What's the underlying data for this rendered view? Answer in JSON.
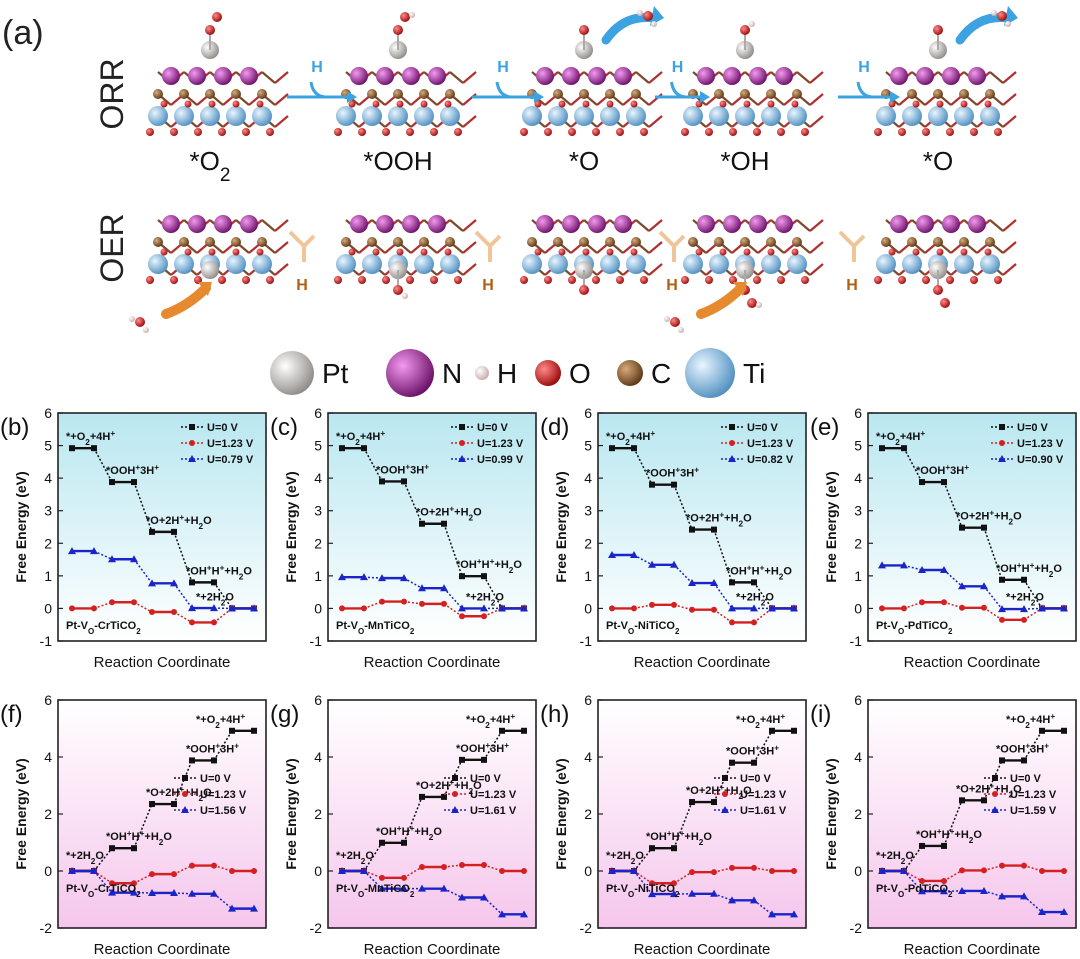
{
  "panel_a": {
    "label": "(a)",
    "orr": {
      "title": "ORR",
      "states": [
        "*O2",
        "*OOH",
        "*O",
        "*OH",
        "*O"
      ],
      "step_label": "H",
      "release_after": [
        2,
        4
      ]
    },
    "oer": {
      "title": "OER",
      "step_label": "H",
      "water_in_before": [
        0,
        3
      ]
    },
    "legend": [
      {
        "label": "Pt",
        "color": "#c9c3bd"
      },
      {
        "label": "N",
        "color": "#9a1f8f"
      },
      {
        "label": "H",
        "color": "#efd4d4"
      },
      {
        "label": "O",
        "color": "#cc1515"
      },
      {
        "label": "C",
        "color": "#8a5a2e"
      },
      {
        "label": "Ti",
        "color": "#7fb8e0"
      }
    ]
  },
  "colors": {
    "s0": "#111111",
    "s1": "#d42020",
    "s2": "#1a24c8",
    "top_bg": "#c9eef4",
    "bottom_bg": "#f7d0ee",
    "arrow_blue": "#3ca3e0",
    "arrow_orange": "#e58a2e"
  },
  "chart_data": [
    {
      "panel": "(b)",
      "type": "line",
      "sample": "Pt-VO-CrTiCO2",
      "sample_parts": [
        "Pt-V",
        "O",
        "-CrTiCO2"
      ],
      "xlabel": "Reaction Coordinate",
      "ylabel": "Free Energy (eV)",
      "ylim": [
        -1,
        6
      ],
      "yticks": [
        -1,
        0,
        1,
        2,
        3,
        4,
        5,
        6
      ],
      "legend_placement": "top-right",
      "series": [
        {
          "name": "U=0 V",
          "values": [
            4.92,
            3.88,
            2.35,
            0.8,
            0.0
          ]
        },
        {
          "name": "U=1.23 V",
          "values": [
            0.0,
            0.19,
            -0.11,
            -0.43,
            0.0
          ]
        },
        {
          "name": "U=0.79 V",
          "values": [
            1.76,
            1.51,
            0.77,
            0.01,
            0.0
          ]
        }
      ],
      "annotations": [
        "*+O2+4H+",
        "*OOH+3H+",
        "*O+2H++H2O",
        "*OH+H++H2O",
        "*+2H2O"
      ]
    },
    {
      "panel": "(c)",
      "type": "line",
      "sample": "Pt-VO-MnTiCO2",
      "sample_parts": [
        "Pt-V",
        "O",
        "-MnTiCO2"
      ],
      "xlabel": "Reaction Coordinate",
      "ylabel": "Free Energy (eV)",
      "ylim": [
        -1,
        6
      ],
      "yticks": [
        -1,
        0,
        1,
        2,
        3,
        4,
        5,
        6
      ],
      "legend_placement": "top-right",
      "series": [
        {
          "name": "U=0 V",
          "values": [
            4.92,
            3.9,
            2.6,
            0.99,
            0.0
          ]
        },
        {
          "name": "U=1.23 V",
          "values": [
            0.0,
            0.21,
            0.14,
            -0.24,
            0.0
          ]
        },
        {
          "name": "U=0.99 V",
          "values": [
            0.96,
            0.93,
            0.62,
            0.0,
            0.0
          ]
        }
      ],
      "annotations": [
        "*+O2+4H+",
        "*OOH+3H+",
        "*O+2H++H2O",
        "*OH+H++H2O",
        "*+2H2O"
      ]
    },
    {
      "panel": "(d)",
      "type": "line",
      "sample": "Pt-VO-NiTiCO2",
      "sample_parts": [
        "Pt-V",
        "O",
        "-NiTiCO2"
      ],
      "xlabel": "Reaction Coordinate",
      "ylabel": "Free Energy (eV)",
      "ylim": [
        -1,
        6
      ],
      "yticks": [
        -1,
        0,
        1,
        2,
        3,
        4,
        5,
        6
      ],
      "legend_placement": "top-right",
      "series": [
        {
          "name": "U=0 V",
          "values": [
            4.92,
            3.8,
            2.42,
            0.8,
            0.0
          ]
        },
        {
          "name": "U=1.23 V",
          "values": [
            0.0,
            0.11,
            -0.04,
            -0.43,
            0.0
          ]
        },
        {
          "name": "U=0.82 V",
          "values": [
            1.64,
            1.34,
            0.78,
            0.0,
            0.0
          ]
        }
      ],
      "annotations": [
        "*+O2+4H+",
        "*OOH+3H+",
        "*O+2H++H2O",
        "*OH+H++H2O",
        "*+2H2O"
      ]
    },
    {
      "panel": "(e)",
      "type": "line",
      "sample": "Pt-VO-PdTiCO2",
      "sample_parts": [
        "Pt-V",
        "O",
        "-PdTiCO2"
      ],
      "xlabel": "Reaction Coordinate",
      "ylabel": "Free Energy (eV)",
      "ylim": [
        -1,
        6
      ],
      "yticks": [
        -1,
        0,
        1,
        2,
        3,
        4,
        5,
        6
      ],
      "legend_placement": "top-right",
      "series": [
        {
          "name": "U=0 V",
          "values": [
            4.92,
            3.88,
            2.48,
            0.88,
            0.0
          ]
        },
        {
          "name": "U=1.23 V",
          "values": [
            0.0,
            0.19,
            0.02,
            -0.35,
            0.0
          ]
        },
        {
          "name": "U=0.90 V",
          "values": [
            1.32,
            1.18,
            0.68,
            -0.02,
            0.0
          ]
        }
      ],
      "annotations": [
        "*+O2+4H+",
        "*OOH+3H+",
        "*O+2H++H2O",
        "*OH+H++H2O",
        "*+2H2O"
      ]
    },
    {
      "panel": "(f)",
      "type": "line",
      "sample": "Pt-VO-CrTiCO2",
      "sample_parts": [
        "Pt-V",
        "O",
        "-CrTiCO2"
      ],
      "xlabel": "Reaction Coordinate",
      "ylabel": "Free Energy (eV)",
      "ylim": [
        -2,
        6
      ],
      "yticks": [
        -2,
        0,
        2,
        4,
        6
      ],
      "legend_placement": "center-right",
      "series": [
        {
          "name": "U=0 V",
          "values": [
            0.0,
            0.8,
            2.35,
            3.88,
            4.92
          ]
        },
        {
          "name": "U=1.23 V",
          "values": [
            0.0,
            -0.43,
            -0.11,
            0.19,
            0.0
          ]
        },
        {
          "name": "U=1.56 V",
          "values": [
            0.0,
            -0.76,
            -0.77,
            -0.8,
            -1.32
          ]
        }
      ],
      "annotations": [
        "*+2H2O",
        "*OH+H++H2O",
        "*O+2H++H2O",
        "*OOH+3H+",
        "*+O2+4H+"
      ]
    },
    {
      "panel": "(g)",
      "type": "line",
      "sample": "Pt-VO-MnTiCO2",
      "sample_parts": [
        "Pt-V",
        "O",
        "-MnTiCO2"
      ],
      "xlabel": "Reaction Coordinate",
      "ylabel": "Free Energy (eV)",
      "ylim": [
        -2,
        6
      ],
      "yticks": [
        -2,
        0,
        2,
        4,
        6
      ],
      "legend_placement": "center-right",
      "series": [
        {
          "name": "U=0 V",
          "values": [
            0.0,
            0.99,
            2.6,
            3.9,
            4.92
          ]
        },
        {
          "name": "U=1.23 V",
          "values": [
            0.0,
            -0.24,
            0.14,
            0.21,
            0.0
          ]
        },
        {
          "name": "U=1.61 V",
          "values": [
            0.0,
            -0.62,
            -0.62,
            -0.93,
            -1.52
          ]
        }
      ],
      "annotations": [
        "*+2H2O",
        "*OH+H++H2O",
        "*O+2H++H2O",
        "*OOH+3H+",
        "*+O2+4H+"
      ]
    },
    {
      "panel": "(h)",
      "type": "line",
      "sample": "Pt-VO-NiTiCO2",
      "sample_parts": [
        "Pt-V",
        "O",
        "-NiTiCO2"
      ],
      "xlabel": "Reaction Coordinate",
      "ylabel": "Free Energy (eV)",
      "ylim": [
        -2,
        6
      ],
      "yticks": [
        -2,
        0,
        2,
        4,
        6
      ],
      "legend_placement": "center-right",
      "series": [
        {
          "name": "U=0 V",
          "values": [
            0.0,
            0.8,
            2.42,
            3.8,
            4.92
          ]
        },
        {
          "name": "U=1.23 V",
          "values": [
            0.0,
            -0.43,
            -0.04,
            0.11,
            0.0
          ]
        },
        {
          "name": "U=1.61 V",
          "values": [
            0.0,
            -0.81,
            -0.8,
            -1.03,
            -1.52
          ]
        }
      ],
      "annotations": [
        "*+2H2O",
        "*OH+H++H2O",
        "*O+2H++H2O",
        "*OOH+3H+",
        "*+O2+4H+"
      ]
    },
    {
      "panel": "(i)",
      "type": "line",
      "sample": "Pt-VO-PdTiCO2",
      "sample_parts": [
        "Pt-V",
        "O",
        "-PdTiCO2"
      ],
      "xlabel": "Reaction Coordinate",
      "ylabel": "Free Energy (eV)",
      "ylim": [
        -2,
        6
      ],
      "yticks": [
        -2,
        0,
        2,
        4,
        6
      ],
      "legend_placement": "center-right",
      "series": [
        {
          "name": "U=0 V",
          "values": [
            0.0,
            0.88,
            2.48,
            3.88,
            4.92
          ]
        },
        {
          "name": "U=1.23 V",
          "values": [
            0.0,
            -0.35,
            0.02,
            0.19,
            0.0
          ]
        },
        {
          "name": "U=1.59 V",
          "values": [
            0.0,
            -0.71,
            -0.7,
            -0.89,
            -1.44
          ]
        }
      ],
      "annotations": [
        "*+2H2O",
        "*OH+H++H2O",
        "*O+2H++H2O",
        "*OOH+3H+",
        "*+O2+4H+"
      ]
    }
  ]
}
